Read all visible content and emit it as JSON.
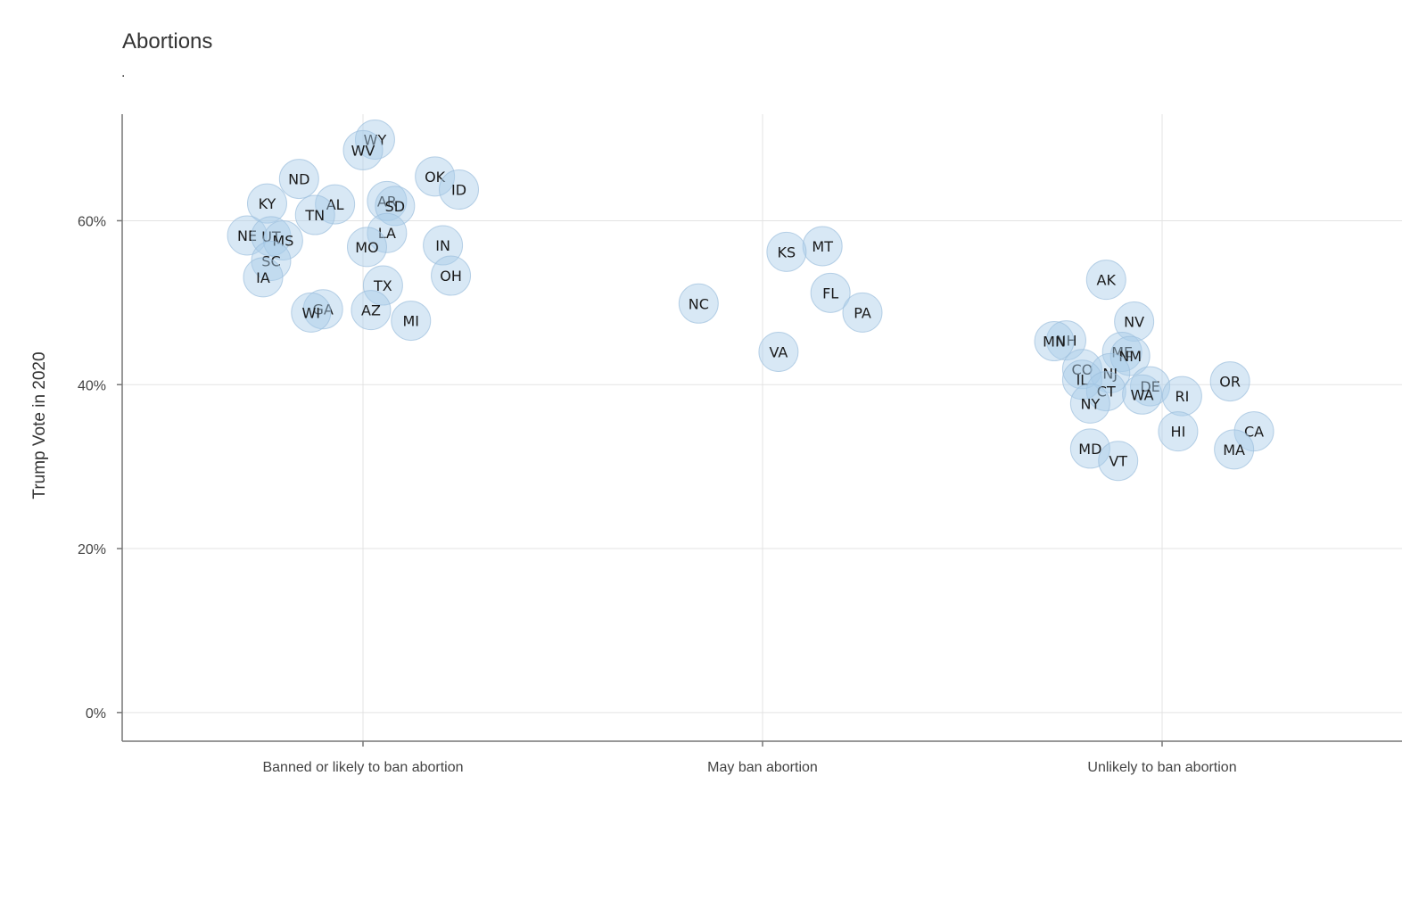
{
  "chart_data": {
    "type": "scatter",
    "title": "Abortions",
    "subtitle": ".",
    "xlabel": "",
    "ylabel": "Trump Vote in 2020",
    "categories": [
      "Banned or likely to ban abortion",
      "May ban abortion",
      "Unlikely to ban abortion"
    ],
    "y_ticks": [
      {
        "value": 0,
        "label": "0%"
      },
      {
        "value": 20,
        "label": "20%"
      },
      {
        "value": 40,
        "label": "40%"
      },
      {
        "value": 60,
        "label": "60%"
      }
    ],
    "ylim": [
      -3.5,
      73
    ],
    "grid": true,
    "colors": {
      "point_fill": "#a9cbe8",
      "point_stroke": "#9dbfdd"
    },
    "points": [
      {
        "label": "WY",
        "category": 0,
        "jitter": 0.03,
        "y": 69.9
      },
      {
        "label": "WV",
        "category": 0,
        "jitter": 0.0,
        "y": 68.6
      },
      {
        "label": "OK",
        "category": 0,
        "jitter": 0.18,
        "y": 65.4
      },
      {
        "label": "ND",
        "category": 0,
        "jitter": -0.16,
        "y": 65.1
      },
      {
        "label": "ID",
        "category": 0,
        "jitter": 0.24,
        "y": 63.8
      },
      {
        "label": "AR",
        "category": 0,
        "jitter": 0.06,
        "y": 62.4
      },
      {
        "label": "KY",
        "category": 0,
        "jitter": -0.24,
        "y": 62.1
      },
      {
        "label": "AL",
        "category": 0,
        "jitter": -0.07,
        "y": 62.0
      },
      {
        "label": "SD",
        "category": 0,
        "jitter": 0.08,
        "y": 61.8
      },
      {
        "label": "TN",
        "category": 0,
        "jitter": -0.12,
        "y": 60.7
      },
      {
        "label": "LA",
        "category": 0,
        "jitter": 0.06,
        "y": 58.5
      },
      {
        "label": "NE",
        "category": 0,
        "jitter": -0.29,
        "y": 58.2
      },
      {
        "label": "UT",
        "category": 0,
        "jitter": -0.23,
        "y": 58.1
      },
      {
        "label": "MS",
        "category": 0,
        "jitter": -0.2,
        "y": 57.6
      },
      {
        "label": "IN",
        "category": 0,
        "jitter": 0.2,
        "y": 57.0
      },
      {
        "label": "MO",
        "category": 0,
        "jitter": 0.01,
        "y": 56.8
      },
      {
        "label": "SC",
        "category": 0,
        "jitter": -0.23,
        "y": 55.1
      },
      {
        "label": "OH",
        "category": 0,
        "jitter": 0.22,
        "y": 53.3
      },
      {
        "label": "IA",
        "category": 0,
        "jitter": -0.25,
        "y": 53.1
      },
      {
        "label": "TX",
        "category": 0,
        "jitter": 0.05,
        "y": 52.1
      },
      {
        "label": "GA",
        "category": 0,
        "jitter": -0.1,
        "y": 49.2
      },
      {
        "label": "AZ",
        "category": 0,
        "jitter": 0.02,
        "y": 49.1
      },
      {
        "label": "WI",
        "category": 0,
        "jitter": -0.13,
        "y": 48.8
      },
      {
        "label": "MI",
        "category": 0,
        "jitter": 0.12,
        "y": 47.8
      },
      {
        "label": "MT",
        "category": 1,
        "jitter": 0.15,
        "y": 56.9
      },
      {
        "label": "KS",
        "category": 1,
        "jitter": 0.06,
        "y": 56.2
      },
      {
        "label": "FL",
        "category": 1,
        "jitter": 0.17,
        "y": 51.2
      },
      {
        "label": "NC",
        "category": 1,
        "jitter": -0.16,
        "y": 49.9
      },
      {
        "label": "PA",
        "category": 1,
        "jitter": 0.25,
        "y": 48.8
      },
      {
        "label": "VA",
        "category": 1,
        "jitter": 0.04,
        "y": 44.0
      },
      {
        "label": "AK",
        "category": 2,
        "jitter": -0.14,
        "y": 52.8
      },
      {
        "label": "NV",
        "category": 2,
        "jitter": -0.07,
        "y": 47.7
      },
      {
        "label": "NH",
        "category": 2,
        "jitter": -0.24,
        "y": 45.4
      },
      {
        "label": "MN",
        "category": 2,
        "jitter": -0.27,
        "y": 45.3
      },
      {
        "label": "ME",
        "category": 2,
        "jitter": -0.1,
        "y": 44.0
      },
      {
        "label": "NM",
        "category": 2,
        "jitter": -0.08,
        "y": 43.5
      },
      {
        "label": "CO",
        "category": 2,
        "jitter": -0.2,
        "y": 41.9
      },
      {
        "label": "NJ",
        "category": 2,
        "jitter": -0.13,
        "y": 41.4
      },
      {
        "label": "IL",
        "category": 2,
        "jitter": -0.2,
        "y": 40.6
      },
      {
        "label": "OR",
        "category": 2,
        "jitter": 0.17,
        "y": 40.4
      },
      {
        "label": "DE",
        "category": 2,
        "jitter": -0.03,
        "y": 39.8
      },
      {
        "label": "CT",
        "category": 2,
        "jitter": -0.14,
        "y": 39.2
      },
      {
        "label": "WA",
        "category": 2,
        "jitter": -0.05,
        "y": 38.8
      },
      {
        "label": "RI",
        "category": 2,
        "jitter": 0.05,
        "y": 38.6
      },
      {
        "label": "NY",
        "category": 2,
        "jitter": -0.18,
        "y": 37.7
      },
      {
        "label": "CA",
        "category": 2,
        "jitter": 0.23,
        "y": 34.3
      },
      {
        "label": "HI",
        "category": 2,
        "jitter": 0.04,
        "y": 34.3
      },
      {
        "label": "MA",
        "category": 2,
        "jitter": 0.18,
        "y": 32.1
      },
      {
        "label": "MD",
        "category": 2,
        "jitter": -0.18,
        "y": 32.2
      },
      {
        "label": "VT",
        "category": 2,
        "jitter": -0.11,
        "y": 30.7
      }
    ]
  }
}
